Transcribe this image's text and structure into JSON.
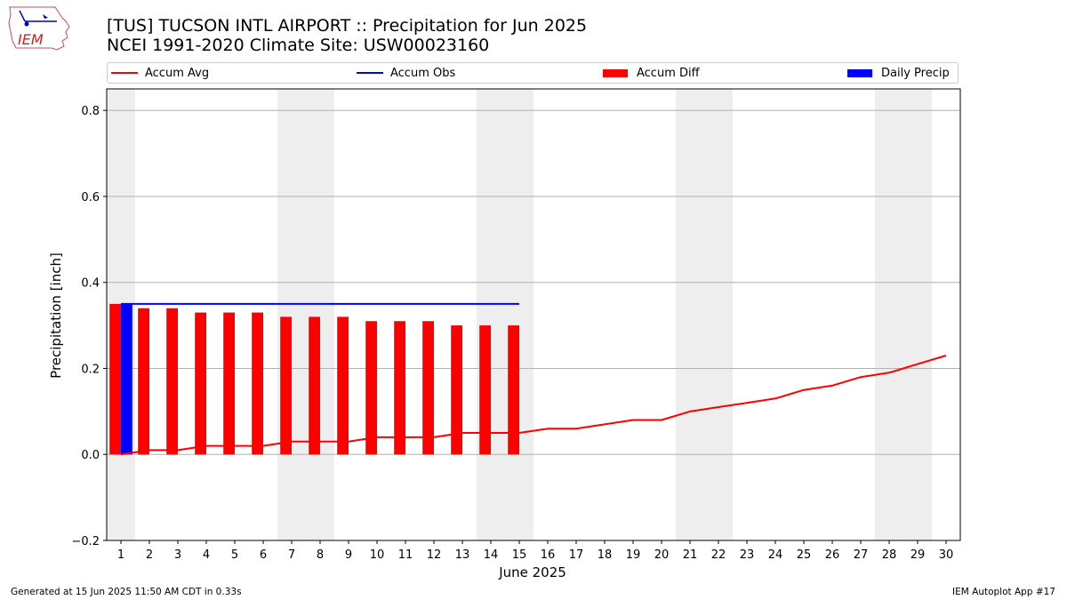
{
  "header": {
    "logo_text": "IEM",
    "title": "[TUS] TUCSON INTL AIRPORT :: Precipitation for Jun 2025",
    "subtitle": "NCEI 1991-2020 Climate Site: USW00023160"
  },
  "footer": {
    "generated": "Generated at 15 Jun 2025 11:50 AM CDT in 0.33s",
    "app": "IEM Autoplot App #17"
  },
  "colors": {
    "accum_avg": "#ff0000",
    "accum_obs": "#0000ff",
    "accum_diff": "#ff0000",
    "daily_precip": "#0000ff",
    "weekend_shading": "#eeeeee",
    "grid": "#b0b0b0"
  },
  "chart_data": {
    "type": "bar",
    "title": "[TUS] TUCSON INTL AIRPORT :: Precipitation for Jun 2025",
    "subtitle": "NCEI 1991-2020 Climate Site: USW00023160",
    "xlabel": "June 2025",
    "ylabel": "Precipitation [inch]",
    "ylim": [
      -0.2,
      0.85
    ],
    "yticks": [
      -0.2,
      0.0,
      0.2,
      0.4,
      0.6,
      0.8
    ],
    "ytick_labels": [
      "−0.2",
      "0.0",
      "0.2",
      "0.4",
      "0.6",
      "0.8"
    ],
    "xlim": [
      0.5,
      30.5
    ],
    "days": [
      1,
      2,
      3,
      4,
      5,
      6,
      7,
      8,
      9,
      10,
      11,
      12,
      13,
      14,
      15,
      16,
      17,
      18,
      19,
      20,
      21,
      22,
      23,
      24,
      25,
      26,
      27,
      28,
      29,
      30
    ],
    "grid": "horizontal",
    "legend_position": "top",
    "weekend_shading_days": [
      1,
      7,
      8,
      14,
      15,
      21,
      22,
      28,
      29
    ],
    "series": [
      {
        "name": "Accum Avg",
        "kind": "line",
        "x": [
          1,
          2,
          3,
          4,
          5,
          6,
          7,
          8,
          9,
          10,
          11,
          12,
          13,
          14,
          15,
          16,
          17,
          18,
          19,
          20,
          21,
          22,
          23,
          24,
          25,
          26,
          27,
          28,
          29,
          30
        ],
        "values": [
          0.0,
          0.01,
          0.01,
          0.02,
          0.02,
          0.02,
          0.03,
          0.03,
          0.03,
          0.04,
          0.04,
          0.04,
          0.05,
          0.05,
          0.05,
          0.06,
          0.06,
          0.07,
          0.08,
          0.08,
          0.1,
          0.11,
          0.12,
          0.13,
          0.15,
          0.16,
          0.18,
          0.19,
          0.21,
          0.23
        ]
      },
      {
        "name": "Accum Obs",
        "kind": "line",
        "x": [
          1,
          2,
          3,
          4,
          5,
          6,
          7,
          8,
          9,
          10,
          11,
          12,
          13,
          14,
          15
        ],
        "values": [
          0.35,
          0.35,
          0.35,
          0.35,
          0.35,
          0.35,
          0.35,
          0.35,
          0.35,
          0.35,
          0.35,
          0.35,
          0.35,
          0.35,
          0.35
        ]
      },
      {
        "name": "Accum Diff",
        "kind": "bar",
        "x": [
          1,
          2,
          3,
          4,
          5,
          6,
          7,
          8,
          9,
          10,
          11,
          12,
          13,
          14,
          15
        ],
        "values": [
          0.35,
          0.34,
          0.34,
          0.33,
          0.33,
          0.33,
          0.32,
          0.32,
          0.32,
          0.31,
          0.31,
          0.31,
          0.3,
          0.3,
          0.3
        ]
      },
      {
        "name": "Daily Precip",
        "kind": "bar",
        "x": [
          1
        ],
        "values": [
          0.35
        ]
      }
    ]
  }
}
